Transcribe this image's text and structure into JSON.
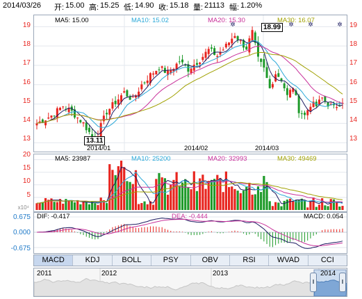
{
  "header": {
    "date": "2014/03/26",
    "open_label": "开:",
    "open": "15.00",
    "high_label": "高:",
    "high": "15.25",
    "low_label": "低:",
    "low": "14.90",
    "close_label": "收:",
    "close": "15.18",
    "volume_label": "量:",
    "volume": "21113",
    "change_label": "幅:",
    "change": "1.20%"
  },
  "kline": {
    "legend": [
      {
        "text": "MA5: 15.00",
        "color": "#1a1a60"
      },
      {
        "text": "MA10: 15.02",
        "color": "#2aa8d8"
      },
      {
        "text": "MA20: 15.30",
        "color": "#c8309a"
      },
      {
        "text": "MA30: 16.07",
        "color": "#a0a000"
      }
    ],
    "y_ticks": [
      "19",
      "18",
      "17",
      "16",
      "15",
      "14",
      "13"
    ],
    "x_ticks": [
      "2014/01",
      "2014/02",
      "2014/03"
    ],
    "max_marker": "18.99",
    "min_marker": "13.11",
    "star_glyph": "✲",
    "colors": {
      "up": "#e8251f",
      "down": "#1e9a2a"
    }
  },
  "volume": {
    "legend": [
      {
        "text": "MA5: 23987",
        "color": "#1a1a60"
      },
      {
        "text": "MA10: 25200",
        "color": "#2aa8d8"
      },
      {
        "text": "MA20: 32993",
        "color": "#c8309a"
      },
      {
        "text": "MA30: 49469",
        "color": "#a0a000"
      }
    ],
    "y_ticks": [
      "20",
      "15",
      "10",
      "5"
    ],
    "unit": "x10⁴"
  },
  "macd": {
    "dif": "DIF: -0.417",
    "dea": "DEA: -0.444",
    "macd": "MACD: 0.054",
    "y_ticks": [
      "0.675",
      "0.000",
      "-0.675"
    ]
  },
  "tabs": [
    "MACD",
    "KDJ",
    "BOLL",
    "PSY",
    "OBV",
    "RSI",
    "WVAD",
    "CCI"
  ],
  "navigator": {
    "years": [
      "2011",
      "2012",
      "2013",
      "2014"
    ]
  }
}
